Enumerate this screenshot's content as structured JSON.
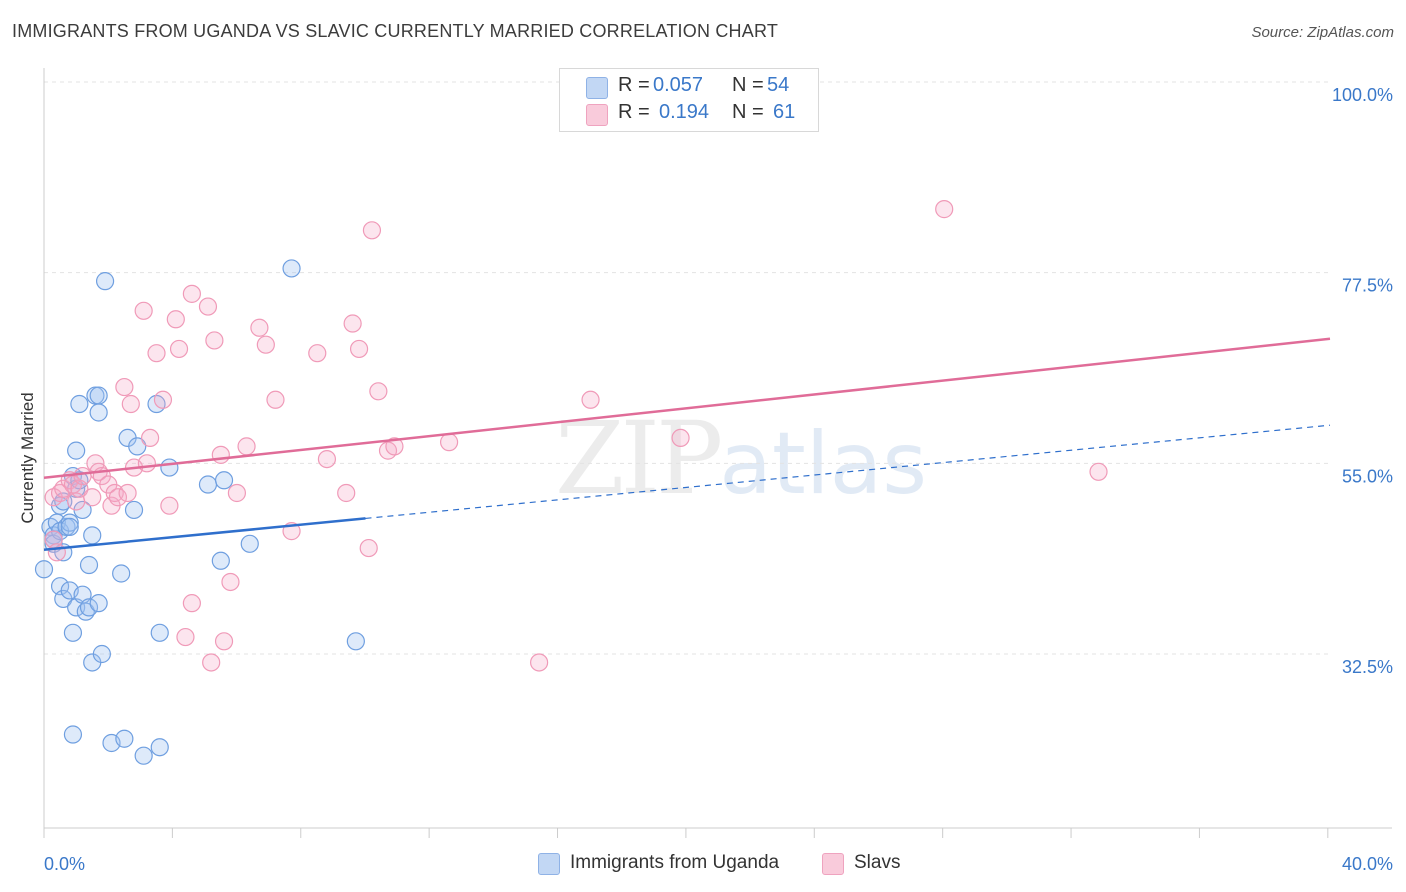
{
  "chart_data": {
    "type": "scatter",
    "title": "IMMIGRANTS FROM UGANDA VS SLAVIC CURRENTLY MARRIED CORRELATION CHART",
    "source": "Source: ZipAtlas.com",
    "xlabel": "",
    "ylabel": "Currently Married",
    "xlim": [
      0,
      40
    ],
    "ylim": [
      10,
      103
    ],
    "x_tick_labels": [
      "0.0%",
      "40.0%"
    ],
    "y_ticks": [
      {
        "value": 32.5,
        "label": "32.5%"
      },
      {
        "value": 55.0,
        "label": "55.0%"
      },
      {
        "value": 77.5,
        "label": "77.5%"
      },
      {
        "value": 100.0,
        "label": "100.0%"
      }
    ],
    "watermark": {
      "zip": "ZIP",
      "atlas": "atlas"
    },
    "legend": [
      {
        "r_label": "R =",
        "r_value": "0.057",
        "n_label": "N =",
        "n_value": "54"
      },
      {
        "r_label": "R =",
        "r_value": "0.194",
        "n_label": "N =",
        "n_value": "61"
      }
    ],
    "series": [
      {
        "name": "Immigrants from Uganda",
        "color": "#6f9fe0",
        "line_color": "#2f6fcc",
        "trend": {
          "x0": 0,
          "y0": 44.8,
          "x1": 10,
          "y1": 48.5,
          "dash_to_x": 40,
          "dash_to_y": 59.5
        },
        "points": [
          [
            0.2,
            47.5
          ],
          [
            0.3,
            46.5
          ],
          [
            0.3,
            45.5
          ],
          [
            0.4,
            48.0
          ],
          [
            0.5,
            47.0
          ],
          [
            0.5,
            50.0
          ],
          [
            0.6,
            44.5
          ],
          [
            0.7,
            47.5
          ],
          [
            0.8,
            48.0
          ],
          [
            0.8,
            47.5
          ],
          [
            0.9,
            53.5
          ],
          [
            1.0,
            56.5
          ],
          [
            1.0,
            52.0
          ],
          [
            1.1,
            53.0
          ],
          [
            1.2,
            49.5
          ],
          [
            0.5,
            40.5
          ],
          [
            0.6,
            39.0
          ],
          [
            0.8,
            40.0
          ],
          [
            1.0,
            38.0
          ],
          [
            1.2,
            39.5
          ],
          [
            1.3,
            37.5
          ],
          [
            1.4,
            38.0
          ],
          [
            1.7,
            38.5
          ],
          [
            0.9,
            35.0
          ],
          [
            1.5,
            31.5
          ],
          [
            1.8,
            32.5
          ],
          [
            0.9,
            23.0
          ],
          [
            2.1,
            22.0
          ],
          [
            2.5,
            22.5
          ],
          [
            3.1,
            20.5
          ],
          [
            3.6,
            21.5
          ],
          [
            1.1,
            62.0
          ],
          [
            1.6,
            63.0
          ],
          [
            1.7,
            61.0
          ],
          [
            1.7,
            63.0
          ],
          [
            2.6,
            58.0
          ],
          [
            2.9,
            57.0
          ],
          [
            3.5,
            62.0
          ],
          [
            2.4,
            42.0
          ],
          [
            1.4,
            43.0
          ],
          [
            1.5,
            46.5
          ],
          [
            2.8,
            49.5
          ],
          [
            3.9,
            54.5
          ],
          [
            5.1,
            52.5
          ],
          [
            5.6,
            53.0
          ],
          [
            5.5,
            43.5
          ],
          [
            6.4,
            45.5
          ],
          [
            3.6,
            35.0
          ],
          [
            9.7,
            34.0
          ],
          [
            7.7,
            78.0
          ],
          [
            1.9,
            76.5
          ],
          [
            0.3,
            46.0
          ],
          [
            0.6,
            50.5
          ],
          [
            0.0,
            42.5
          ]
        ]
      },
      {
        "name": "Slavs",
        "color": "#f09ab8",
        "line_color": "#e06c98",
        "trend": {
          "x0": 0,
          "y0": 53.3,
          "x1": 40,
          "y1": 69.7
        },
        "points": [
          [
            0.3,
            51.0
          ],
          [
            0.3,
            46.0
          ],
          [
            0.4,
            44.5
          ],
          [
            0.5,
            51.5
          ],
          [
            0.6,
            52.0
          ],
          [
            0.8,
            53.0
          ],
          [
            0.9,
            52.5
          ],
          [
            1.0,
            50.5
          ],
          [
            1.1,
            52.0
          ],
          [
            1.2,
            53.5
          ],
          [
            1.5,
            51.0
          ],
          [
            1.6,
            55.0
          ],
          [
            1.7,
            54.0
          ],
          [
            1.8,
            53.5
          ],
          [
            2.0,
            52.5
          ],
          [
            2.1,
            50.0
          ],
          [
            2.2,
            51.5
          ],
          [
            2.3,
            51.0
          ],
          [
            2.5,
            64.0
          ],
          [
            2.6,
            51.5
          ],
          [
            2.7,
            62.0
          ],
          [
            2.8,
            54.5
          ],
          [
            3.2,
            55.0
          ],
          [
            3.3,
            58.0
          ],
          [
            3.5,
            68.0
          ],
          [
            3.7,
            62.5
          ],
          [
            3.9,
            50.0
          ],
          [
            3.1,
            73.0
          ],
          [
            4.1,
            72.0
          ],
          [
            4.2,
            68.5
          ],
          [
            4.6,
            75.0
          ],
          [
            5.1,
            73.5
          ],
          [
            5.3,
            69.5
          ],
          [
            5.5,
            56.0
          ],
          [
            6.0,
            51.5
          ],
          [
            6.3,
            57.0
          ],
          [
            6.7,
            71.0
          ],
          [
            6.9,
            69.0
          ],
          [
            7.2,
            62.5
          ],
          [
            7.7,
            47.0
          ],
          [
            8.5,
            68.0
          ],
          [
            8.8,
            55.5
          ],
          [
            9.4,
            51.5
          ],
          [
            9.6,
            71.5
          ],
          [
            9.8,
            68.5
          ],
          [
            10.1,
            45.0
          ],
          [
            10.4,
            63.5
          ],
          [
            10.7,
            56.5
          ],
          [
            10.9,
            57.0
          ],
          [
            12.6,
            57.5
          ],
          [
            10.2,
            82.5
          ],
          [
            17.0,
            62.5
          ],
          [
            19.8,
            58.0
          ],
          [
            28.0,
            85.0
          ],
          [
            32.8,
            54.0
          ],
          [
            4.6,
            38.5
          ],
          [
            5.8,
            41.0
          ],
          [
            4.4,
            34.5
          ],
          [
            5.6,
            34.0
          ],
          [
            5.2,
            31.5
          ],
          [
            15.4,
            31.5
          ]
        ]
      }
    ]
  }
}
